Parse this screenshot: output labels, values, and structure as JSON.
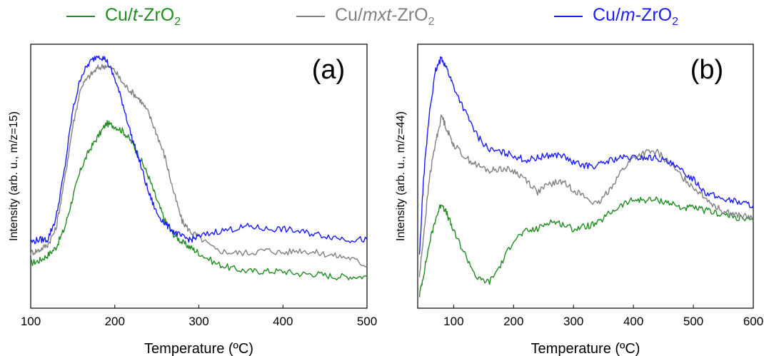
{
  "legend": {
    "items": [
      {
        "prefix": "Cu/",
        "italic": "t",
        "middle": "-ZrO",
        "sub": "2",
        "color": "#1f8c1f"
      },
      {
        "prefix": "Cu/",
        "italic": "mxt",
        "middle": "-ZrO",
        "sub": "2",
        "color": "#808080"
      },
      {
        "prefix": "Cu/",
        "italic": "m",
        "middle": "-ZrO",
        "sub": "2",
        "color": "#1a1aff"
      }
    ]
  },
  "chart_data": [
    {
      "type": "line",
      "panel_label": "(a)",
      "xlabel": "Temperature (ºC)",
      "ylabel": "Intensity (arb. u., m/z=15)",
      "xlim": [
        100,
        500
      ],
      "ylim": [
        0,
        1
      ],
      "xticks": [
        100,
        200,
        300,
        400,
        500
      ],
      "yticks_labeled": false,
      "series": [
        {
          "name": "Cu/t-ZrO2",
          "color": "#1f8c1f",
          "x": [
            100,
            110,
            120,
            130,
            140,
            150,
            160,
            170,
            180,
            190,
            200,
            210,
            220,
            230,
            240,
            250,
            260,
            270,
            280,
            290,
            300,
            320,
            340,
            360,
            380,
            400,
            420,
            440,
            460,
            480,
            500
          ],
          "y": [
            0.17,
            0.18,
            0.2,
            0.23,
            0.3,
            0.42,
            0.53,
            0.6,
            0.65,
            0.7,
            0.69,
            0.67,
            0.63,
            0.57,
            0.5,
            0.41,
            0.33,
            0.28,
            0.25,
            0.23,
            0.21,
            0.17,
            0.15,
            0.14,
            0.14,
            0.14,
            0.13,
            0.13,
            0.12,
            0.12,
            0.12
          ]
        },
        {
          "name": "Cu/mxt-ZrO2",
          "color": "#808080",
          "x": [
            100,
            110,
            120,
            130,
            140,
            150,
            160,
            170,
            180,
            190,
            200,
            210,
            220,
            230,
            240,
            250,
            260,
            270,
            280,
            290,
            300,
            320,
            340,
            360,
            380,
            400,
            420,
            440,
            460,
            480,
            500
          ],
          "y": [
            0.21,
            0.22,
            0.24,
            0.3,
            0.48,
            0.69,
            0.84,
            0.88,
            0.91,
            0.92,
            0.9,
            0.85,
            0.82,
            0.79,
            0.74,
            0.66,
            0.57,
            0.44,
            0.33,
            0.29,
            0.27,
            0.22,
            0.21,
            0.21,
            0.22,
            0.21,
            0.22,
            0.21,
            0.2,
            0.19,
            0.16
          ]
        },
        {
          "name": "Cu/m-ZrO2",
          "color": "#1a1aff",
          "x": [
            100,
            110,
            120,
            130,
            140,
            150,
            160,
            170,
            180,
            190,
            200,
            210,
            220,
            230,
            240,
            250,
            260,
            270,
            280,
            290,
            300,
            320,
            340,
            360,
            380,
            400,
            420,
            440,
            460,
            480,
            500
          ],
          "y": [
            0.25,
            0.26,
            0.26,
            0.34,
            0.52,
            0.75,
            0.88,
            0.93,
            0.96,
            0.94,
            0.87,
            0.77,
            0.65,
            0.55,
            0.44,
            0.36,
            0.32,
            0.29,
            0.27,
            0.26,
            0.27,
            0.29,
            0.3,
            0.31,
            0.3,
            0.3,
            0.29,
            0.28,
            0.27,
            0.26,
            0.26
          ]
        }
      ]
    },
    {
      "type": "line",
      "panel_label": "(b)",
      "xlabel": "Temperature (ºC)",
      "ylabel": "Intensity (arb. u., m/z=44)",
      "xlim": [
        40,
        600
      ],
      "ylim": [
        0,
        1
      ],
      "xticks": [
        100,
        200,
        300,
        400,
        500,
        600
      ],
      "yticks_labeled": false,
      "series": [
        {
          "name": "Cu/t-ZrO2",
          "color": "#1f8c1f",
          "x": [
            43,
            50,
            60,
            70,
            80,
            90,
            100,
            120,
            140,
            160,
            180,
            200,
            220,
            240,
            260,
            280,
            300,
            320,
            340,
            360,
            380,
            400,
            420,
            440,
            460,
            480,
            500,
            520,
            540,
            560,
            580,
            600
          ],
          "y": [
            0.05,
            0.13,
            0.25,
            0.34,
            0.4,
            0.35,
            0.29,
            0.2,
            0.11,
            0.1,
            0.17,
            0.26,
            0.29,
            0.3,
            0.33,
            0.32,
            0.3,
            0.31,
            0.32,
            0.36,
            0.39,
            0.41,
            0.41,
            0.41,
            0.4,
            0.38,
            0.38,
            0.37,
            0.36,
            0.35,
            0.34,
            0.33
          ]
        },
        {
          "name": "Cu/mxt-ZrO2",
          "color": "#808080",
          "x": [
            43,
            50,
            60,
            70,
            80,
            90,
            100,
            120,
            140,
            160,
            180,
            200,
            220,
            240,
            260,
            280,
            300,
            320,
            340,
            360,
            380,
            400,
            420,
            440,
            460,
            480,
            500,
            520,
            540,
            560,
            580,
            600
          ],
          "y": [
            0.12,
            0.28,
            0.5,
            0.63,
            0.73,
            0.67,
            0.62,
            0.57,
            0.54,
            0.52,
            0.53,
            0.52,
            0.49,
            0.44,
            0.47,
            0.48,
            0.45,
            0.42,
            0.39,
            0.45,
            0.52,
            0.57,
            0.59,
            0.59,
            0.55,
            0.5,
            0.46,
            0.42,
            0.38,
            0.36,
            0.35,
            0.34
          ]
        },
        {
          "name": "Cu/m-ZrO2",
          "color": "#1a1aff",
          "x": [
            43,
            50,
            60,
            70,
            80,
            90,
            100,
            120,
            140,
            160,
            180,
            200,
            220,
            240,
            260,
            280,
            300,
            320,
            340,
            360,
            380,
            400,
            420,
            440,
            460,
            480,
            500,
            520,
            540,
            560,
            580,
            600
          ],
          "y": [
            0.2,
            0.5,
            0.75,
            0.9,
            0.95,
            0.9,
            0.84,
            0.74,
            0.65,
            0.6,
            0.59,
            0.58,
            0.56,
            0.57,
            0.58,
            0.58,
            0.55,
            0.54,
            0.54,
            0.56,
            0.57,
            0.57,
            0.57,
            0.57,
            0.55,
            0.52,
            0.49,
            0.44,
            0.42,
            0.41,
            0.4,
            0.39
          ]
        }
      ]
    }
  ]
}
